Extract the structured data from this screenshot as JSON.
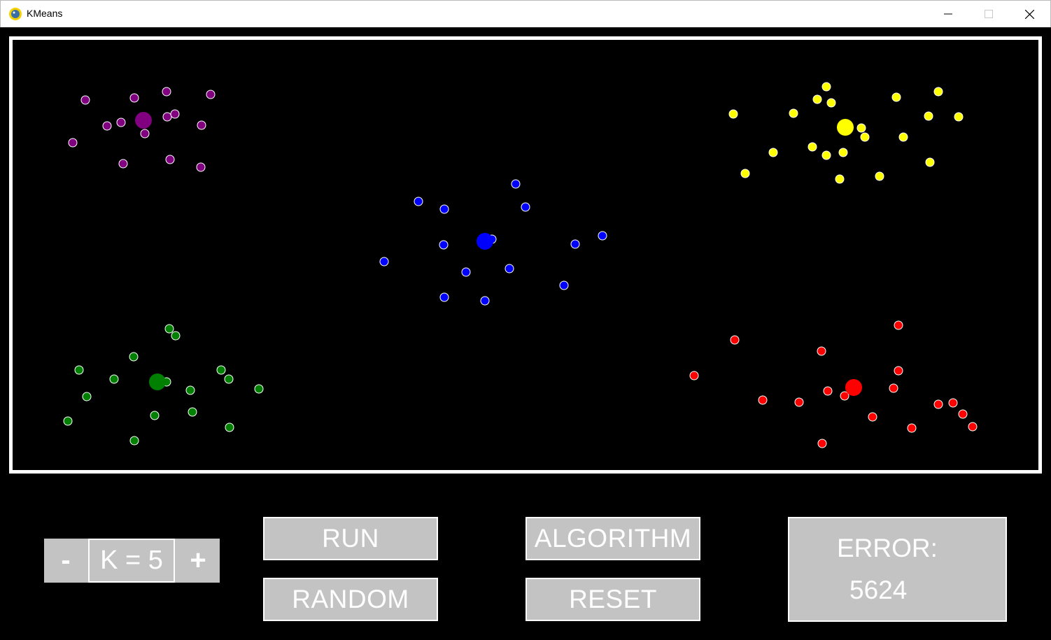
{
  "window": {
    "title": "KMeans",
    "controls": {
      "minimize_icon": "minimize-icon",
      "maximize_icon": "maximize-icon",
      "close_icon": "close-icon"
    }
  },
  "controls": {
    "minus_label": "-",
    "k_display": "K = 5",
    "plus_label": "+",
    "run_label": "RUN",
    "random_label": "RANDOM",
    "algorithm_label": "ALGORITHM",
    "reset_label": "RESET",
    "error_label": "ERROR:",
    "error_value": "5624"
  },
  "colors": {
    "background": "#000000",
    "button_fill": "#c3c3c3",
    "button_border": "#ffffff",
    "point_outline": "#ffffff"
  },
  "clusters": [
    {
      "name": "purple",
      "color": "#800080",
      "centroid": [
        205,
        172
      ],
      "points": [
        [
          122,
          143
        ],
        [
          192,
          140
        ],
        [
          238,
          131
        ],
        [
          301,
          135
        ],
        [
          153,
          180
        ],
        [
          173,
          175
        ],
        [
          207,
          191
        ],
        [
          239,
          167
        ],
        [
          250,
          163
        ],
        [
          288,
          179
        ],
        [
          104,
          204
        ],
        [
          176,
          234
        ],
        [
          243,
          228
        ],
        [
          287,
          239
        ]
      ]
    },
    {
      "name": "blue",
      "color": "#0000ff",
      "centroid": [
        693,
        345
      ],
      "points": [
        [
          737,
          263
        ],
        [
          598,
          288
        ],
        [
          635,
          299
        ],
        [
          751,
          296
        ],
        [
          634,
          350
        ],
        [
          703,
          342
        ],
        [
          822,
          349
        ],
        [
          861,
          337
        ],
        [
          549,
          374
        ],
        [
          666,
          389
        ],
        [
          728,
          384
        ],
        [
          806,
          408
        ],
        [
          635,
          425
        ],
        [
          693,
          430
        ]
      ]
    },
    {
      "name": "yellow",
      "color": "#ffff00",
      "centroid": [
        1208,
        182
      ],
      "points": [
        [
          1181,
          124
        ],
        [
          1168,
          142
        ],
        [
          1188,
          147
        ],
        [
          1281,
          139
        ],
        [
          1341,
          131
        ],
        [
          1048,
          163
        ],
        [
          1134,
          162
        ],
        [
          1327,
          166
        ],
        [
          1370,
          167
        ],
        [
          1231,
          183
        ],
        [
          1236,
          196
        ],
        [
          1291,
          196
        ],
        [
          1105,
          218
        ],
        [
          1161,
          210
        ],
        [
          1181,
          222
        ],
        [
          1205,
          218
        ],
        [
          1329,
          232
        ],
        [
          1065,
          248
        ],
        [
          1200,
          256
        ],
        [
          1257,
          252
        ]
      ]
    },
    {
      "name": "green",
      "color": "#008000",
      "centroid": [
        225,
        546
      ],
      "points": [
        [
          242,
          470
        ],
        [
          251,
          480
        ],
        [
          191,
          510
        ],
        [
          113,
          529
        ],
        [
          163,
          542
        ],
        [
          238,
          546
        ],
        [
          316,
          529
        ],
        [
          327,
          542
        ],
        [
          272,
          558
        ],
        [
          370,
          556
        ],
        [
          124,
          567
        ],
        [
          221,
          594
        ],
        [
          275,
          589
        ],
        [
          97,
          602
        ],
        [
          328,
          611
        ],
        [
          192,
          630
        ]
      ]
    },
    {
      "name": "red",
      "color": "#ff0000",
      "centroid": [
        1220,
        554
      ],
      "points": [
        [
          1284,
          465
        ],
        [
          1050,
          486
        ],
        [
          1174,
          502
        ],
        [
          1284,
          530
        ],
        [
          992,
          537
        ],
        [
          1277,
          555
        ],
        [
          1183,
          559
        ],
        [
          1207,
          566
        ],
        [
          1090,
          572
        ],
        [
          1142,
          575
        ],
        [
          1341,
          578
        ],
        [
          1362,
          576
        ],
        [
          1376,
          592
        ],
        [
          1247,
          596
        ],
        [
          1390,
          610
        ],
        [
          1303,
          612
        ],
        [
          1175,
          634
        ]
      ]
    }
  ]
}
